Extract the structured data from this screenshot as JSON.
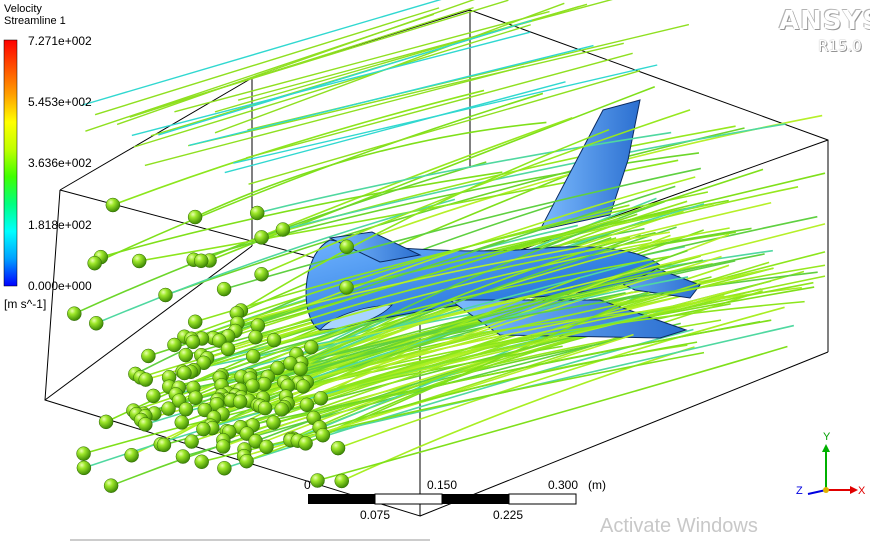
{
  "legend": {
    "variable": "Velocity",
    "object": "Streamline 1",
    "ticks": [
      "7.271e+002",
      "5.453e+002",
      "3.636e+002",
      "1.818e+002",
      "0.000e+000"
    ],
    "units": "[m s^-1]",
    "colormap": [
      "#0000ff",
      "#00a0ff",
      "#00ffff",
      "#00ff80",
      "#40ff00",
      "#c0ff00",
      "#ffff00",
      "#ffa000",
      "#ff5000",
      "#ff0000"
    ]
  },
  "logo": {
    "name": "ANSYS",
    "version": "R15.0"
  },
  "scale_bar": {
    "top_labels": [
      "0",
      "0.150",
      "0.300"
    ],
    "bottom_labels": [
      "0.075",
      "0.225"
    ],
    "unit": "(m)"
  },
  "axes": {
    "y": "Y",
    "x": "X",
    "z": "Z"
  },
  "colors": {
    "streamline": "#8fe020",
    "seed": "#7fd41a",
    "body": "#3a82e6",
    "axis_x": "#e00000",
    "axis_y": "#00b000",
    "axis_z": "#0000e0"
  },
  "watermark": "Activate Windows"
}
